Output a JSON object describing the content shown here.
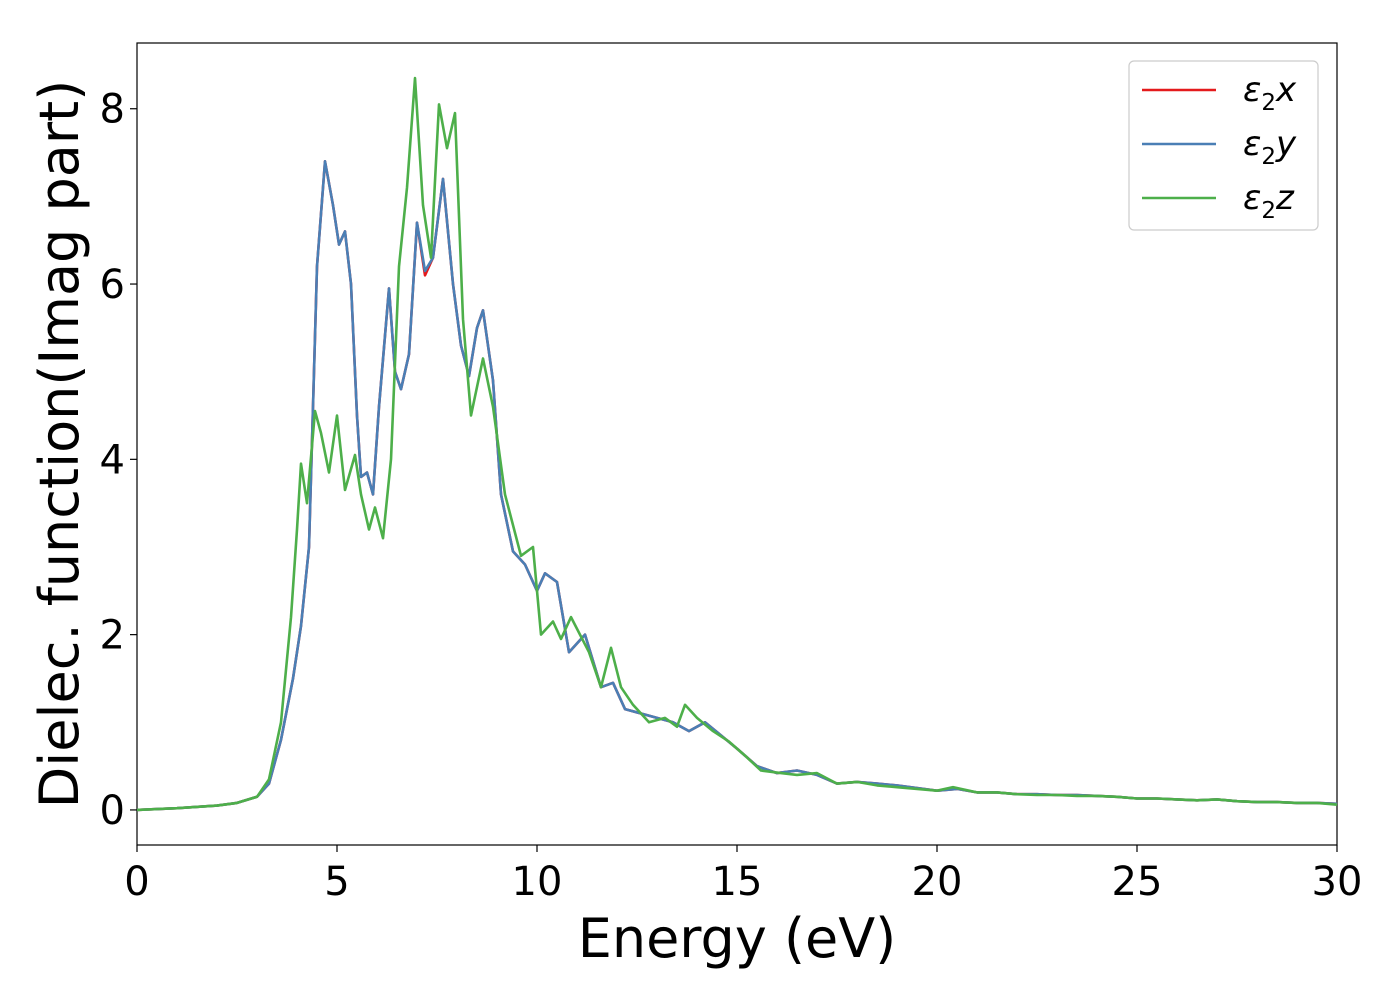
{
  "chart_data": {
    "type": "line",
    "title": "",
    "xlabel": "Energy (eV)",
    "ylabel": "Dielec. function(Imag part)",
    "xlim": [
      0,
      30
    ],
    "ylim": [
      -0.4,
      8.75
    ],
    "xticks": [
      0,
      5,
      10,
      15,
      20,
      25,
      30
    ],
    "yticks": [
      0,
      2,
      4,
      6,
      8
    ],
    "grid": false,
    "legend_position": "top-right",
    "series": [
      {
        "name": "ε2x",
        "legend": {
          "base": "ε",
          "sub": "2",
          "rest": "x"
        },
        "color": "#e41a1c",
        "points": [
          [
            0,
            0
          ],
          [
            1,
            0.02
          ],
          [
            2,
            0.05
          ],
          [
            2.5,
            0.08
          ],
          [
            3,
            0.15
          ],
          [
            3.3,
            0.3
          ],
          [
            3.6,
            0.8
          ],
          [
            3.9,
            1.5
          ],
          [
            4.1,
            2.1
          ],
          [
            4.3,
            3.0
          ],
          [
            4.5,
            6.2
          ],
          [
            4.7,
            7.4
          ],
          [
            4.9,
            6.9
          ],
          [
            5.05,
            6.45
          ],
          [
            5.2,
            6.6
          ],
          [
            5.35,
            6.0
          ],
          [
            5.5,
            4.5
          ],
          [
            5.6,
            3.8
          ],
          [
            5.75,
            3.85
          ],
          [
            5.9,
            3.6
          ],
          [
            6.05,
            4.6
          ],
          [
            6.3,
            5.95
          ],
          [
            6.45,
            5.0
          ],
          [
            6.6,
            4.8
          ],
          [
            6.8,
            5.2
          ],
          [
            7.0,
            6.7
          ],
          [
            7.2,
            6.1
          ],
          [
            7.4,
            6.3
          ],
          [
            7.65,
            7.2
          ],
          [
            7.9,
            6.0
          ],
          [
            8.1,
            5.3
          ],
          [
            8.3,
            4.95
          ],
          [
            8.5,
            5.5
          ],
          [
            8.65,
            5.7
          ],
          [
            8.9,
            4.9
          ],
          [
            9.1,
            3.6
          ],
          [
            9.4,
            2.95
          ],
          [
            9.7,
            2.8
          ],
          [
            10.0,
            2.5
          ],
          [
            10.2,
            2.7
          ],
          [
            10.5,
            2.6
          ],
          [
            10.8,
            1.8
          ],
          [
            11.2,
            2.0
          ],
          [
            11.6,
            1.4
          ],
          [
            11.9,
            1.45
          ],
          [
            12.2,
            1.15
          ],
          [
            12.6,
            1.1
          ],
          [
            13.0,
            1.05
          ],
          [
            13.4,
            1.0
          ],
          [
            13.8,
            0.9
          ],
          [
            14.2,
            1.0
          ],
          [
            14.6,
            0.85
          ],
          [
            15.0,
            0.7
          ],
          [
            15.5,
            0.5
          ],
          [
            16.0,
            0.42
          ],
          [
            16.5,
            0.45
          ],
          [
            17.0,
            0.4
          ],
          [
            17.5,
            0.3
          ],
          [
            18.0,
            0.32
          ],
          [
            18.5,
            0.3
          ],
          [
            19.0,
            0.28
          ],
          [
            19.5,
            0.25
          ],
          [
            20.0,
            0.22
          ],
          [
            20.5,
            0.24
          ],
          [
            21.0,
            0.2
          ],
          [
            21.5,
            0.2
          ],
          [
            22.0,
            0.18
          ],
          [
            22.5,
            0.18
          ],
          [
            23.0,
            0.17
          ],
          [
            23.5,
            0.17
          ],
          [
            24.0,
            0.16
          ],
          [
            24.5,
            0.15
          ],
          [
            25.0,
            0.13
          ],
          [
            25.5,
            0.13
          ],
          [
            26.0,
            0.12
          ],
          [
            26.5,
            0.11
          ],
          [
            27.0,
            0.12
          ],
          [
            27.5,
            0.1
          ],
          [
            28.0,
            0.09
          ],
          [
            28.5,
            0.09
          ],
          [
            29.0,
            0.08
          ],
          [
            29.5,
            0.08
          ],
          [
            30.0,
            0.07
          ]
        ]
      },
      {
        "name": "ε2y",
        "legend": {
          "base": "ε",
          "sub": "2",
          "rest": "y"
        },
        "color": "#4a7fb5",
        "points": [
          [
            0,
            0
          ],
          [
            1,
            0.02
          ],
          [
            2,
            0.05
          ],
          [
            2.5,
            0.08
          ],
          [
            3,
            0.15
          ],
          [
            3.3,
            0.3
          ],
          [
            3.6,
            0.8
          ],
          [
            3.9,
            1.5
          ],
          [
            4.1,
            2.1
          ],
          [
            4.3,
            3.0
          ],
          [
            4.5,
            6.2
          ],
          [
            4.7,
            7.4
          ],
          [
            4.9,
            6.9
          ],
          [
            5.05,
            6.45
          ],
          [
            5.2,
            6.6
          ],
          [
            5.35,
            6.0
          ],
          [
            5.5,
            4.5
          ],
          [
            5.6,
            3.8
          ],
          [
            5.75,
            3.85
          ],
          [
            5.9,
            3.6
          ],
          [
            6.05,
            4.6
          ],
          [
            6.3,
            5.95
          ],
          [
            6.45,
            5.0
          ],
          [
            6.6,
            4.8
          ],
          [
            6.8,
            5.2
          ],
          [
            7.0,
            6.7
          ],
          [
            7.2,
            6.15
          ],
          [
            7.4,
            6.3
          ],
          [
            7.65,
            7.2
          ],
          [
            7.9,
            6.0
          ],
          [
            8.1,
            5.3
          ],
          [
            8.3,
            4.95
          ],
          [
            8.5,
            5.5
          ],
          [
            8.65,
            5.7
          ],
          [
            8.9,
            4.9
          ],
          [
            9.1,
            3.6
          ],
          [
            9.4,
            2.95
          ],
          [
            9.7,
            2.8
          ],
          [
            10.0,
            2.5
          ],
          [
            10.2,
            2.7
          ],
          [
            10.5,
            2.6
          ],
          [
            10.8,
            1.8
          ],
          [
            11.2,
            2.0
          ],
          [
            11.6,
            1.4
          ],
          [
            11.9,
            1.45
          ],
          [
            12.2,
            1.15
          ],
          [
            12.6,
            1.1
          ],
          [
            13.0,
            1.05
          ],
          [
            13.4,
            1.0
          ],
          [
            13.8,
            0.9
          ],
          [
            14.2,
            1.0
          ],
          [
            14.6,
            0.85
          ],
          [
            15.0,
            0.7
          ],
          [
            15.5,
            0.5
          ],
          [
            16.0,
            0.42
          ],
          [
            16.5,
            0.45
          ],
          [
            17.0,
            0.4
          ],
          [
            17.5,
            0.3
          ],
          [
            18.0,
            0.32
          ],
          [
            18.5,
            0.3
          ],
          [
            19.0,
            0.28
          ],
          [
            19.5,
            0.25
          ],
          [
            20.0,
            0.22
          ],
          [
            20.5,
            0.24
          ],
          [
            21.0,
            0.2
          ],
          [
            21.5,
            0.2
          ],
          [
            22.0,
            0.18
          ],
          [
            22.5,
            0.18
          ],
          [
            23.0,
            0.17
          ],
          [
            23.5,
            0.17
          ],
          [
            24.0,
            0.16
          ],
          [
            24.5,
            0.15
          ],
          [
            25.0,
            0.13
          ],
          [
            25.5,
            0.13
          ],
          [
            26.0,
            0.12
          ],
          [
            26.5,
            0.11
          ],
          [
            27.0,
            0.12
          ],
          [
            27.5,
            0.1
          ],
          [
            28.0,
            0.09
          ],
          [
            28.5,
            0.09
          ],
          [
            29.0,
            0.08
          ],
          [
            29.5,
            0.08
          ],
          [
            30.0,
            0.07
          ]
        ]
      },
      {
        "name": "ε2z",
        "legend": {
          "base": "ε",
          "sub": "2",
          "rest": "z"
        },
        "color": "#4daf4a",
        "points": [
          [
            0,
            0
          ],
          [
            1,
            0.02
          ],
          [
            2,
            0.05
          ],
          [
            2.5,
            0.08
          ],
          [
            3,
            0.15
          ],
          [
            3.3,
            0.35
          ],
          [
            3.6,
            1.0
          ],
          [
            3.85,
            2.2
          ],
          [
            4.0,
            3.2
          ],
          [
            4.1,
            3.95
          ],
          [
            4.25,
            3.5
          ],
          [
            4.45,
            4.55
          ],
          [
            4.6,
            4.3
          ],
          [
            4.8,
            3.85
          ],
          [
            5.0,
            4.5
          ],
          [
            5.2,
            3.65
          ],
          [
            5.45,
            4.05
          ],
          [
            5.6,
            3.6
          ],
          [
            5.8,
            3.2
          ],
          [
            5.95,
            3.45
          ],
          [
            6.15,
            3.1
          ],
          [
            6.35,
            4.0
          ],
          [
            6.55,
            6.2
          ],
          [
            6.75,
            7.1
          ],
          [
            6.95,
            8.35
          ],
          [
            7.15,
            6.9
          ],
          [
            7.35,
            6.3
          ],
          [
            7.55,
            8.05
          ],
          [
            7.75,
            7.55
          ],
          [
            7.95,
            7.95
          ],
          [
            8.15,
            5.6
          ],
          [
            8.35,
            4.5
          ],
          [
            8.65,
            5.15
          ],
          [
            8.9,
            4.6
          ],
          [
            9.2,
            3.6
          ],
          [
            9.6,
            2.9
          ],
          [
            9.9,
            3.0
          ],
          [
            10.1,
            2.0
          ],
          [
            10.4,
            2.15
          ],
          [
            10.6,
            1.95
          ],
          [
            10.85,
            2.2
          ],
          [
            11.3,
            1.8
          ],
          [
            11.6,
            1.4
          ],
          [
            11.85,
            1.85
          ],
          [
            12.1,
            1.4
          ],
          [
            12.4,
            1.2
          ],
          [
            12.8,
            1.0
          ],
          [
            13.2,
            1.05
          ],
          [
            13.5,
            0.95
          ],
          [
            13.7,
            1.2
          ],
          [
            14.0,
            1.05
          ],
          [
            14.4,
            0.9
          ],
          [
            14.8,
            0.78
          ],
          [
            15.2,
            0.62
          ],
          [
            15.6,
            0.45
          ],
          [
            16.1,
            0.42
          ],
          [
            16.5,
            0.4
          ],
          [
            17.0,
            0.42
          ],
          [
            17.5,
            0.3
          ],
          [
            18.0,
            0.32
          ],
          [
            18.5,
            0.28
          ],
          [
            19.0,
            0.26
          ],
          [
            19.5,
            0.24
          ],
          [
            20.0,
            0.22
          ],
          [
            20.4,
            0.26
          ],
          [
            21.0,
            0.2
          ],
          [
            21.5,
            0.2
          ],
          [
            22.0,
            0.18
          ],
          [
            22.5,
            0.17
          ],
          [
            23.0,
            0.17
          ],
          [
            23.5,
            0.16
          ],
          [
            24.0,
            0.16
          ],
          [
            24.5,
            0.15
          ],
          [
            25.0,
            0.13
          ],
          [
            25.5,
            0.13
          ],
          [
            26.0,
            0.12
          ],
          [
            26.5,
            0.11
          ],
          [
            27.0,
            0.12
          ],
          [
            27.5,
            0.1
          ],
          [
            28.0,
            0.09
          ],
          [
            28.5,
            0.09
          ],
          [
            29.0,
            0.08
          ],
          [
            29.5,
            0.08
          ],
          [
            30.0,
            0.06
          ]
        ]
      }
    ]
  }
}
